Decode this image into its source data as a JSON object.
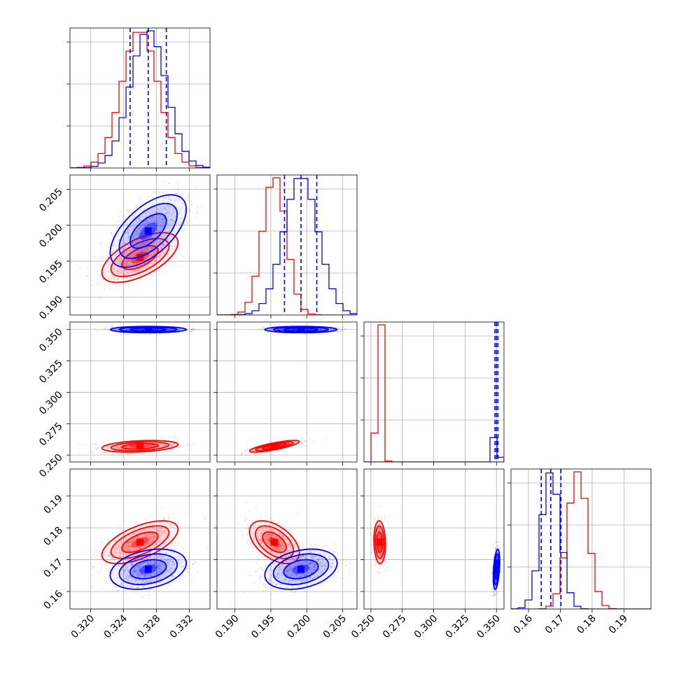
{
  "colors": {
    "series_a": "#ff0000",
    "series_b": "#0000ff",
    "grid": "#b0b0b0",
    "axes": "#000000"
  },
  "chart_data": {
    "type": "corner",
    "grid": true,
    "params": [
      {
        "range": [
          0.3175,
          0.3345
        ],
        "ticks": [
          "0.320",
          "0.324",
          "0.328",
          "0.332"
        ]
      },
      {
        "range": [
          0.1875,
          0.207
        ],
        "ticks": [
          "0.190",
          "0.195",
          "0.200",
          "0.205"
        ]
      },
      {
        "range": [
          0.2445,
          0.356
        ],
        "ticks": [
          "0.250",
          "0.275",
          "0.300",
          "0.325",
          "0.350"
        ]
      },
      {
        "range": [
          0.1545,
          0.1985
        ],
        "ticks": [
          "0.16",
          "0.17",
          "0.18",
          "0.19"
        ]
      }
    ],
    "series": [
      {
        "color": "#ff0000",
        "means": [
          0.326,
          0.1955,
          0.257,
          0.1755
        ],
        "stds": [
          0.0022,
          0.00165,
          0.0022,
          0.0032
        ],
        "correlations": {
          "0-1": 0.6,
          "0-2": 0.3,
          "0-3": 0.6,
          "1-2": 0.8,
          "1-3": -0.5,
          "2-3": -0.1
        }
      },
      {
        "color": "#0000ff",
        "means": [
          0.327,
          0.1992,
          0.35,
          0.167
        ],
        "stds": [
          0.0022,
          0.0024,
          0.0012,
          0.003
        ],
        "correlations": {
          "0-1": 0.6,
          "0-2": 0.0,
          "0-3": 0.3,
          "1-2": 0.0,
          "1-3": 0.3,
          "2-3": 0.4
        }
      }
    ],
    "quantile_lines": {
      "color": "#0000ff",
      "values": [
        [
          0.3248,
          0.327,
          0.3292
        ],
        [
          0.1969,
          0.1992,
          0.2014
        ],
        [
          0.3488,
          0.35,
          0.3512
        ],
        [
          0.164,
          0.167,
          0.1702
        ]
      ]
    },
    "panel_ylim": [
      null,
      [
        0.1875,
        0.207
      ],
      [
        0.2445,
        0.356
      ],
      [
        0.1545,
        0.1985
      ]
    ]
  }
}
